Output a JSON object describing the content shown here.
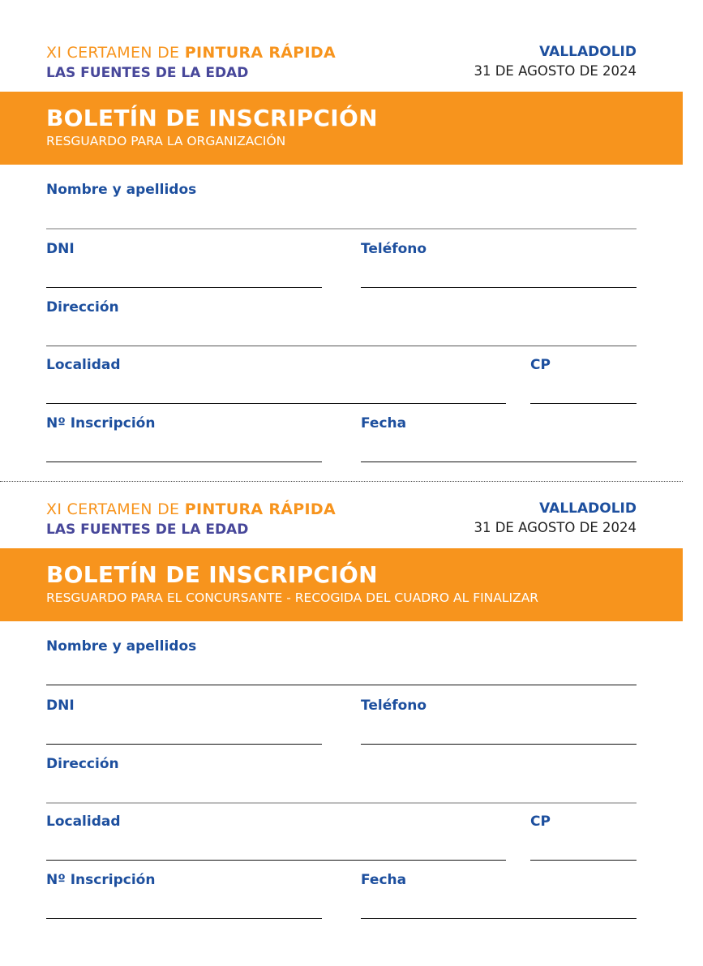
{
  "forms": [
    {
      "header": {
        "event_prefix": "XI CERTAMEN DE ",
        "event_highlight": "PINTURA RÁPIDA",
        "subtitle": "LAS FUENTES DE LA EDAD",
        "city": "VALLADOLID",
        "date": "31 DE AGOSTO DE 2024"
      },
      "band": {
        "title": "BOLETÍN DE INSCRIPCIÓN",
        "subtitle": "RESGUARDO PARA LA ORGANIZACIÓN"
      },
      "fields": {
        "name": "Nombre y apellidos",
        "dni": "DNI",
        "phone": "Teléfono",
        "address": "Dirección",
        "locality": "Localidad",
        "cp": "CP",
        "registration": "Nº Inscripción",
        "date": "Fecha"
      }
    },
    {
      "header": {
        "event_prefix": "XI CERTAMEN DE ",
        "event_highlight": "PINTURA RÁPIDA",
        "subtitle": "LAS FUENTES DE LA EDAD",
        "city": "VALLADOLID",
        "date": "31 DE AGOSTO DE 2024"
      },
      "band": {
        "title": "BOLETÍN DE INSCRIPCIÓN",
        "subtitle": "RESGUARDO PARA EL CONCURSANTE - RECOGIDA DEL CUADRO AL FINALIZAR"
      },
      "fields": {
        "name": "Nombre y apellidos",
        "dni": "DNI",
        "phone": "Teléfono",
        "address": "Dirección",
        "locality": "Localidad",
        "cp": "CP",
        "registration": "Nº Inscripción",
        "date": "Fecha"
      }
    }
  ],
  "colors": {
    "accent": "#f7941d",
    "label": "#1d4f9e",
    "subtitle": "#47479a"
  }
}
